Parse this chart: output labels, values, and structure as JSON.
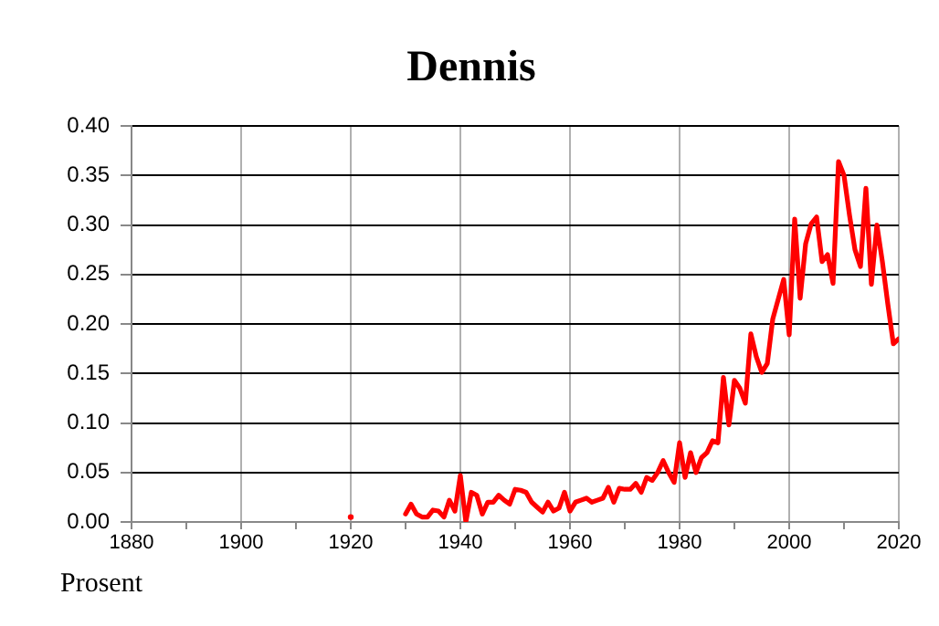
{
  "chart_data": {
    "type": "line",
    "title": "Dennis",
    "ylabel": "Prosent",
    "x": [
      1920,
      1921,
      1922,
      1923,
      1924,
      1925,
      1926,
      1927,
      1928,
      1929,
      1930,
      1931,
      1932,
      1933,
      1934,
      1935,
      1936,
      1937,
      1938,
      1939,
      1940,
      1941,
      1942,
      1943,
      1944,
      1945,
      1946,
      1947,
      1948,
      1949,
      1950,
      1951,
      1952,
      1953,
      1954,
      1955,
      1956,
      1957,
      1958,
      1959,
      1960,
      1961,
      1962,
      1963,
      1964,
      1965,
      1966,
      1967,
      1968,
      1969,
      1970,
      1971,
      1972,
      1973,
      1974,
      1975,
      1976,
      1977,
      1978,
      1979,
      1980,
      1981,
      1982,
      1983,
      1984,
      1985,
      1986,
      1987,
      1988,
      1989,
      1990,
      1991,
      1992,
      1993,
      1994,
      1995,
      1996,
      1997,
      1998,
      1999,
      2000,
      2001,
      2002,
      2003,
      2004,
      2005,
      2006,
      2007,
      2008,
      2009,
      2010,
      2011,
      2012,
      2013,
      2014,
      2015,
      2016,
      2017,
      2018,
      2019,
      2020
    ],
    "series": [
      {
        "color": "#ff0000",
        "values": [
          0.005,
          null,
          null,
          null,
          null,
          null,
          null,
          null,
          null,
          null,
          0.008,
          0.018,
          0.008,
          0.005,
          0.005,
          0.012,
          0.011,
          0.005,
          0.022,
          0.011,
          0.047,
          0.0,
          0.03,
          0.027,
          0.008,
          0.02,
          0.02,
          0.027,
          0.022,
          0.018,
          0.033,
          0.032,
          0.03,
          0.02,
          0.015,
          0.01,
          0.02,
          0.011,
          0.014,
          0.03,
          0.011,
          0.02,
          0.022,
          0.024,
          0.02,
          0.022,
          0.024,
          0.035,
          0.02,
          0.034,
          0.033,
          0.033,
          0.039,
          0.03,
          0.045,
          0.042,
          0.05,
          0.062,
          0.05,
          0.04,
          0.08,
          0.045,
          0.07,
          0.05,
          0.065,
          0.07,
          0.082,
          0.08,
          0.146,
          0.098,
          0.143,
          0.135,
          0.12,
          0.19,
          0.167,
          0.151,
          0.16,
          0.205,
          0.225,
          0.245,
          0.189,
          0.306,
          0.226,
          0.281,
          0.301,
          0.308,
          0.263,
          0.27,
          0.241,
          0.364,
          0.35,
          0.31,
          0.275,
          0.258,
          0.337,
          0.24,
          0.3,
          0.263,
          0.22,
          0.18,
          0.185
        ]
      }
    ],
    "xlim": [
      1880,
      2020
    ],
    "xticks": [
      1880,
      {
        "value": 1890,
        "label": null
      },
      1900,
      {
        "value": 1910,
        "label": null
      },
      1920,
      {
        "value": 1930,
        "label": null
      },
      1940,
      {
        "value": 1950,
        "label": null
      },
      1960,
      {
        "value": 1970,
        "label": null
      },
      1980,
      {
        "value": 1990,
        "label": null
      },
      2000,
      {
        "value": 2010,
        "label": null
      },
      2020
    ],
    "ylim": [
      0,
      0.4
    ],
    "yticks": [
      {
        "value": 0,
        "label": "0.00"
      },
      {
        "value": 0.05,
        "label": "0.05"
      },
      {
        "value": 0.1,
        "label": "0.10"
      },
      {
        "value": 0.15,
        "label": "0.15"
      },
      {
        "value": 0.2,
        "label": "0.20"
      },
      {
        "value": 0.25,
        "label": "0.25"
      },
      {
        "value": 0.3,
        "label": "0.30"
      },
      {
        "value": 0.35,
        "label": "0.35"
      },
      {
        "value": 0.4,
        "label": "0.40"
      }
    ],
    "grid": true,
    "legend": false,
    "line_style": "solid"
  }
}
